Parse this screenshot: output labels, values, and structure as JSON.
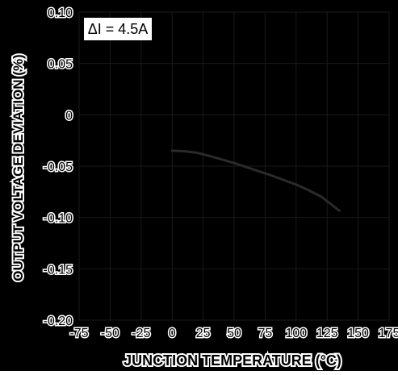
{
  "chart_data": {
    "type": "line",
    "title": "",
    "xlabel": "JUNCTION TEMPERATURE (°C)",
    "ylabel": "OUTPUT VOLTAGE DEVIATION (%)",
    "xlim": [
      -75,
      175
    ],
    "ylim": [
      -0.2,
      0.1
    ],
    "x_ticks": [
      -75,
      -50,
      -25,
      0,
      25,
      50,
      75,
      100,
      125,
      150,
      175
    ],
    "x_tick_labels": [
      "-75",
      "-50",
      "-25",
      "0",
      "25",
      "50",
      "75",
      "100",
      "125",
      "150",
      "175"
    ],
    "y_ticks": [
      0.1,
      0.05,
      0,
      -0.05,
      -0.1,
      -0.15,
      -0.2
    ],
    "y_tick_labels": [
      "0.10",
      "0.05",
      "0",
      "-0.05",
      "-0.10",
      "-0.15",
      "-0.20"
    ],
    "grid": true,
    "annotation": "ΔI = 4.5A",
    "series": [
      {
        "x": [
          0,
          10,
          20,
          30,
          40,
          50,
          60,
          70,
          80,
          90,
          100,
          110,
          120,
          135
        ],
        "y": [
          -0.035,
          -0.0355,
          -0.037,
          -0.04,
          -0.0435,
          -0.047,
          -0.051,
          -0.055,
          -0.059,
          -0.0635,
          -0.068,
          -0.0735,
          -0.0795,
          -0.0935
        ]
      }
    ]
  },
  "colors": {
    "background": "#000000",
    "plot_area": "#000000",
    "grid": "#1a1a1a",
    "line": "#2a2a2a",
    "label_box": "#ffffff",
    "text_on_box": "#000000",
    "axis_text_outline": "#ffffff"
  }
}
